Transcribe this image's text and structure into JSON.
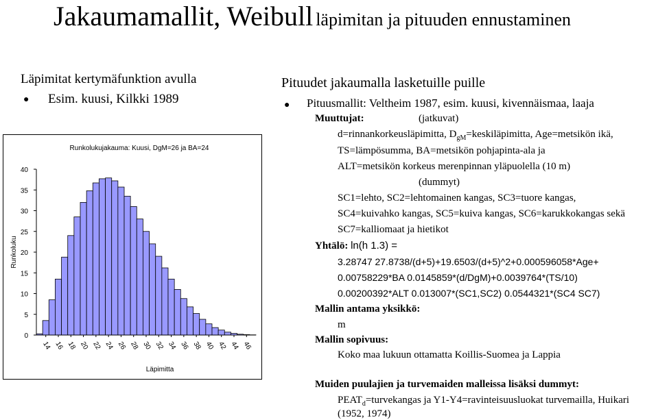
{
  "title": {
    "main": "Jakaumamallit, Weibull",
    "sub": "läpimitan ja pituuden ennustaminen"
  },
  "left": {
    "heading": "Läpimitat kertymäfunktion avulla",
    "bullet": "Esim. kuusi, Kilkki 1989"
  },
  "chart_data": {
    "type": "bar",
    "title": "Runkolukujakauma: Kuusi, DgM=26 ja BA=24",
    "xlabel": "Läpimitta",
    "ylabel": "Runkoluku",
    "ylim": [
      0,
      40
    ],
    "yticks": [
      "0",
      "5",
      "10",
      "15",
      "20",
      "25",
      "30",
      "35",
      "40"
    ],
    "xticks": [
      "14",
      "16",
      "18",
      "20",
      "22",
      "24",
      "26",
      "28",
      "30",
      "32",
      "34",
      "36",
      "38",
      "40",
      "42",
      "44",
      "46"
    ],
    "bar_color": "#9999ff",
    "categories": [
      13,
      14,
      15,
      16,
      17,
      18,
      19,
      20,
      21,
      22,
      23,
      24,
      25,
      26,
      27,
      28,
      29,
      30,
      31,
      32,
      33,
      34,
      35,
      36,
      37,
      38,
      39,
      40,
      41,
      42,
      43,
      44,
      45,
      46,
      47
    ],
    "values": [
      0.3,
      3.5,
      8.5,
      13.5,
      18.8,
      24.0,
      28.5,
      32.0,
      34.8,
      36.7,
      37.7,
      37.9,
      37.2,
      35.7,
      33.5,
      31.0,
      28.0,
      25.0,
      22.0,
      19.0,
      16.2,
      13.5,
      11.0,
      8.8,
      6.8,
      5.2,
      3.8,
      2.7,
      1.8,
      1.2,
      0.7,
      0.4,
      0.2,
      0.1,
      0.05
    ]
  },
  "right": {
    "heading": "Pituudet jakaumalla lasketuille puille",
    "bullet": "Pituusmallit: Veltheim 1987, esim. kuusi, kivennäismaa, laaja",
    "muuttujat_label": "Muuttujat:",
    "jatkuvat": "(jatkuvat)",
    "line1_a": "d=rinnankorkeusläpimitta, D",
    "line1_sub": "gM",
    "line1_b": "=keskiläpimitta, Age=metsikön ikä,",
    "line2": "TS=lämpösumma, BA=metsikön pohjapinta-ala ja",
    "line3": "ALT=metsikön korkeus merenpinnan yläpuolella (10 m)",
    "dummyt": "(dummyt)",
    "line4": "SC1=lehto, SC2=lehtomainen kangas, SC3=tuore kangas,",
    "line5": "SC4=kuivahko kangas, SC5=kuiva kangas, SC6=karukkokangas sekä",
    "line6": "SC7=kalliomaat ja hietikot",
    "yhtalo_label": "Yhtälö:",
    "eq0": "ln(h   1.3) =",
    "eq1": "3.28747   27.8738/(d+5)+19.6503/(d+5)^2+0.000596058*Age+",
    "eq2": "0.00758229*BA   0.0145859*(d/DgM)+0.0039764*(TS/10)",
    "eq3": "0.00200392*ALT   0.013007*(SC1,SC2)   0.0544321*(SC4   SC7)",
    "yksikko_label": "Mallin antama yksikkö:",
    "yksikko": "m",
    "sopivuus_label": "Mallin sopivuus:",
    "sopivuus": "Koko maa lukuun ottamatta Koillis-Suomea ja Lappia",
    "muiden": "Muiden puulajien ja turvemaiden malleissa lisäksi dummyt:",
    "peat_a": "PEAT",
    "peat_sub": "d",
    "peat_b": "=turvekangas ja  Y1-Y4=ravinteisuusluokat turvemailla, Huikari",
    "peat_c": "(1952, 1974)"
  }
}
